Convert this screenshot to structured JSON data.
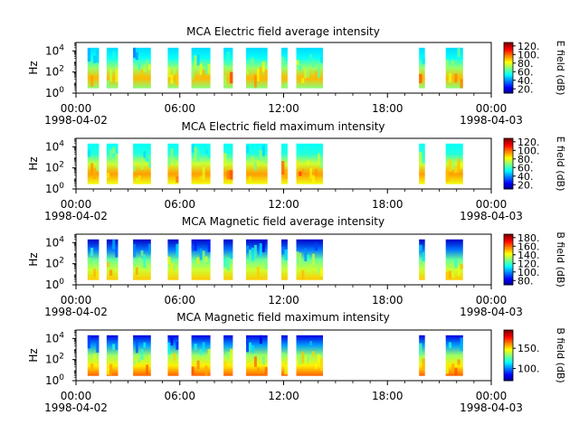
{
  "figure": {
    "background": "#ffffff",
    "time_ticks": [
      "00:00",
      "06:00",
      "12:00",
      "18:00",
      "00:00"
    ],
    "dates": {
      "start": "1998-04-02",
      "end": "1998-04-03"
    }
  },
  "chart_data": [
    {
      "type": "heatmap",
      "title": "MCA  Electric field average intensity",
      "ylabel": "Hz",
      "colorbar_label": "E field (dB)",
      "colorbar_ticks": [
        "20.",
        "40.",
        "60.",
        "80.",
        "100.",
        "120."
      ],
      "clim": [
        10,
        128
      ],
      "y_scale": "log",
      "y_ticks": [
        {
          "base": "10",
          "exp": "0"
        },
        {
          "base": "10",
          "exp": "2"
        },
        {
          "base": "10",
          "exp": "4"
        }
      ],
      "x_range_hours": [
        0,
        24
      ],
      "data_segments_hours": [
        [
          0.67,
          1.33
        ],
        [
          1.77,
          2.43
        ],
        [
          3.3,
          4.33
        ],
        [
          5.3,
          5.93
        ],
        [
          6.67,
          7.77
        ],
        [
          8.53,
          9.07
        ],
        [
          9.83,
          11.07
        ],
        [
          11.87,
          12.23
        ],
        [
          12.73,
          14.27
        ],
        [
          19.83,
          20.17
        ],
        [
          21.37,
          22.37
        ]
      ],
      "profile_db": [
        70,
        92,
        72,
        55,
        50
      ]
    },
    {
      "type": "heatmap",
      "title": "MCA  Electric field maximum intensity",
      "ylabel": "Hz",
      "colorbar_label": "E field (dB)",
      "colorbar_ticks": [
        "20.",
        "40.",
        "60.",
        "80.",
        "100.",
        "120."
      ],
      "clim": [
        10,
        128
      ],
      "y_scale": "log",
      "y_ticks": [
        {
          "base": "10",
          "exp": "0"
        },
        {
          "base": "10",
          "exp": "2"
        },
        {
          "base": "10",
          "exp": "4"
        }
      ],
      "x_range_hours": [
        0,
        24
      ],
      "data_segments_hours": [
        [
          0.67,
          1.33
        ],
        [
          1.77,
          2.43
        ],
        [
          3.3,
          4.33
        ],
        [
          5.3,
          5.93
        ],
        [
          6.67,
          7.77
        ],
        [
          8.53,
          9.07
        ],
        [
          9.83,
          11.07
        ],
        [
          11.87,
          12.23
        ],
        [
          12.73,
          14.27
        ],
        [
          19.83,
          20.17
        ],
        [
          21.37,
          22.37
        ]
      ],
      "profile_db": [
        82,
        95,
        78,
        58,
        55
      ]
    },
    {
      "type": "heatmap",
      "title": "MCA  Magnetic field average intensity",
      "ylabel": "Hz",
      "colorbar_label": "B field (dB)",
      "colorbar_ticks": [
        "80.",
        "100.",
        "120.",
        "140.",
        "160.",
        "180."
      ],
      "clim": [
        70,
        188
      ],
      "y_scale": "log",
      "y_ticks": [
        {
          "base": "10",
          "exp": "0"
        },
        {
          "base": "10",
          "exp": "2"
        },
        {
          "base": "10",
          "exp": "4"
        }
      ],
      "x_range_hours": [
        0,
        24
      ],
      "data_segments_hours": [
        [
          0.67,
          1.33
        ],
        [
          1.77,
          2.43
        ],
        [
          3.3,
          4.33
        ],
        [
          5.3,
          5.93
        ],
        [
          6.67,
          7.77
        ],
        [
          8.53,
          9.07
        ],
        [
          9.83,
          11.07
        ],
        [
          11.87,
          12.23
        ],
        [
          12.73,
          14.27
        ],
        [
          19.83,
          20.17
        ],
        [
          21.37,
          22.37
        ]
      ],
      "profile_db": [
        150,
        138,
        126,
        98,
        78
      ]
    },
    {
      "type": "heatmap",
      "title": "MCA  Magnetic field maximum intensity",
      "ylabel": "Hz",
      "colorbar_label": "B field (dB)",
      "colorbar_ticks": [
        "100.",
        "150."
      ],
      "clim": [
        70,
        195
      ],
      "y_scale": "log",
      "y_ticks": [
        {
          "base": "10",
          "exp": "0"
        },
        {
          "base": "10",
          "exp": "2"
        },
        {
          "base": "10",
          "exp": "4"
        }
      ],
      "x_range_hours": [
        0,
        24
      ],
      "data_segments_hours": [
        [
          0.67,
          1.33
        ],
        [
          1.77,
          2.43
        ],
        [
          3.3,
          4.33
        ],
        [
          5.3,
          5.93
        ],
        [
          6.67,
          7.77
        ],
        [
          8.53,
          9.07
        ],
        [
          9.83,
          11.07
        ],
        [
          11.87,
          12.23
        ],
        [
          12.73,
          14.27
        ],
        [
          19.83,
          20.17
        ],
        [
          21.37,
          22.37
        ]
      ],
      "profile_db": [
        168,
        150,
        136,
        105,
        82
      ]
    }
  ]
}
